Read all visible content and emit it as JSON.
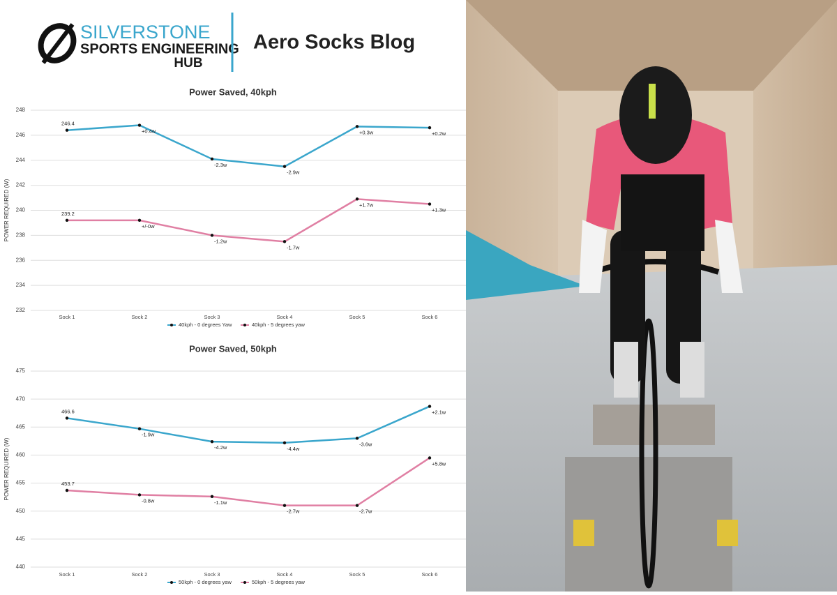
{
  "header": {
    "logo_lines": [
      "SILVERSTONE",
      "SPORTS ENGINEERING",
      "HUB"
    ],
    "title": "Aero Socks Blog"
  },
  "chart_data": [
    {
      "type": "line",
      "title": "Power Saved, 40kph",
      "y_label": "POWER REQUIRED (W)",
      "categories": [
        "Sock 1",
        "Sock 2",
        "Sock 3",
        "Sock 4",
        "Sock 5",
        "Sock 6"
      ],
      "ylim": [
        232,
        248
      ],
      "yticks": [
        232,
        234,
        236,
        238,
        240,
        242,
        244,
        246,
        248
      ],
      "grid": true,
      "series": [
        {
          "name": "40kph - 0 degrees Yaw",
          "color": "#3aa6cc",
          "values": [
            246.4,
            246.8,
            244.1,
            243.5,
            246.7,
            246.6
          ],
          "point_labels": [
            "246.4",
            "+0.4w",
            "-2.3w",
            "-2.9w",
            "+0.3w",
            "+0.2w"
          ]
        },
        {
          "name": "40kph - 5 degrees yaw",
          "color": "#e07fa3",
          "values": [
            239.2,
            239.2,
            238.0,
            237.5,
            240.9,
            240.5
          ],
          "point_labels": [
            "239.2",
            "+/-0w",
            "-1.2w",
            "-1.7w",
            "+1.7w",
            "+1.3w"
          ]
        }
      ]
    },
    {
      "type": "line",
      "title": "Power Saved, 50kph",
      "y_label": "POWER REQUIRED (W)",
      "categories": [
        "Sock 1",
        "Sock 2",
        "Sock 3",
        "Sock 4",
        "Sock 5",
        "Sock 6"
      ],
      "ylim": [
        440,
        475
      ],
      "yticks": [
        440,
        445,
        450,
        455,
        460,
        465,
        470,
        475
      ],
      "grid": true,
      "series": [
        {
          "name": "50kph - 0 degrees yaw",
          "color": "#3aa6cc",
          "values": [
            466.6,
            464.7,
            462.4,
            462.2,
            463.0,
            468.7
          ],
          "point_labels": [
            "466.6",
            "-1.9w",
            "-4.2w",
            "-4.4w",
            "-3.6w",
            "+2.1w"
          ]
        },
        {
          "name": "50kph - 5 degrees yaw",
          "color": "#e07fa3",
          "values": [
            453.7,
            452.9,
            452.6,
            451.0,
            451.0,
            459.5
          ],
          "point_labels": [
            "453.7",
            "-0.8w",
            "-1.1w",
            "-2.7w",
            "-2.7w",
            "+5.8w"
          ]
        }
      ]
    }
  ]
}
